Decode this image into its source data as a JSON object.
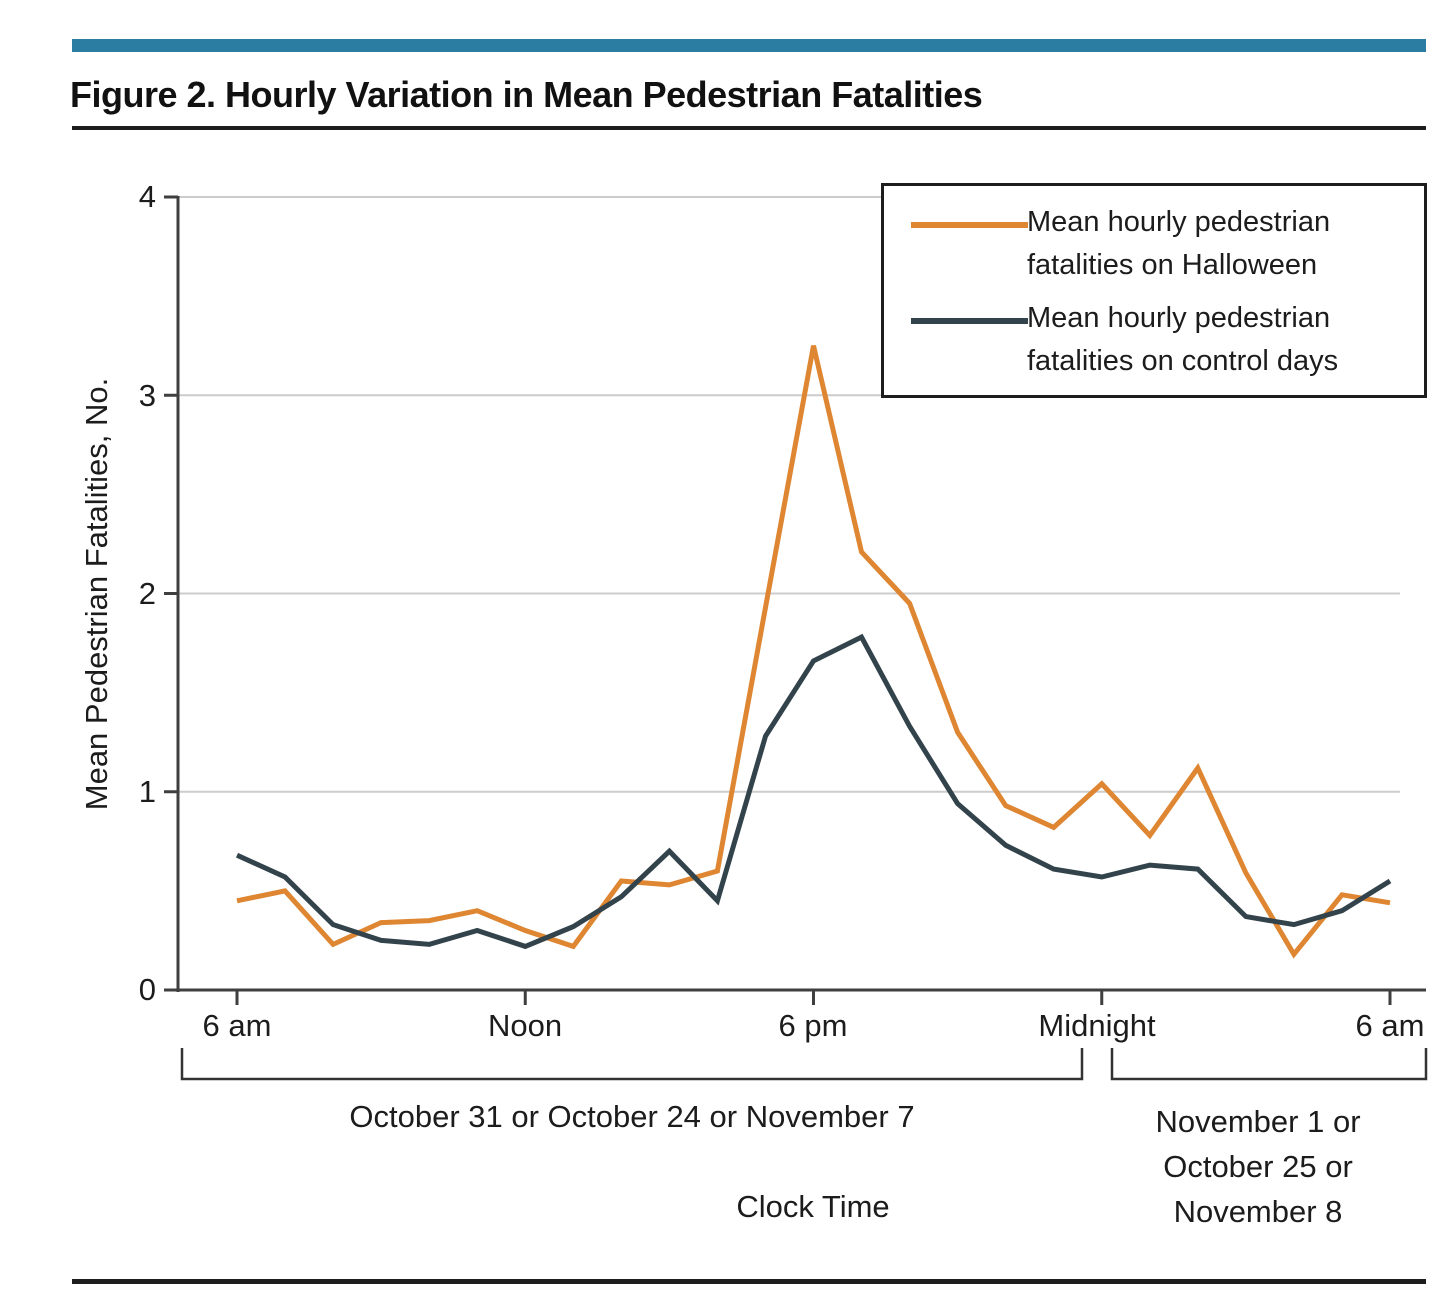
{
  "figure": {
    "title": "Figure 2. Hourly Variation in Mean Pedestrian Fatalities",
    "accent_color": "#2B7EA1"
  },
  "chart_data": {
    "type": "line",
    "ylabel": "Mean Pedestrian Fatalities, No.",
    "xlabel": "Clock Time",
    "ylim": [
      0,
      4
    ],
    "yticks": [
      0,
      1,
      2,
      3,
      4
    ],
    "ytick_labels": [
      "4",
      "3",
      "2",
      "1",
      "0"
    ],
    "xtick_labels": [
      "6 am",
      "Noon",
      "6 pm",
      "Midnight",
      "6 am"
    ],
    "xtick_hours": [
      0,
      6,
      12,
      18,
      24
    ],
    "grid": "horizontal",
    "grid_color": "#CCCCCC",
    "axis_color": "#3F3F3F",
    "legend_position": "top-right",
    "x_hours_after_6am": [
      0,
      1,
      2,
      3,
      4,
      5,
      6,
      7,
      8,
      9,
      10,
      11,
      12,
      13,
      14,
      15,
      16,
      17,
      18,
      19,
      20,
      21,
      22,
      23,
      24
    ],
    "series": [
      {
        "id": "halloween",
        "name": "Mean hourly pedestrian fatalities on Halloween",
        "color": "#DE8632",
        "values": [
          0.45,
          0.5,
          0.23,
          0.34,
          0.35,
          0.4,
          0.3,
          0.22,
          0.55,
          0.53,
          0.6,
          1.93,
          3.25,
          2.21,
          1.95,
          1.3,
          0.93,
          0.82,
          1.04,
          0.78,
          1.12,
          0.59,
          0.18,
          0.48,
          0.44
        ]
      },
      {
        "id": "control",
        "name": "Mean hourly pedestrian fatalities on control days",
        "color": "#33434C",
        "values": [
          0.68,
          0.57,
          0.33,
          0.25,
          0.23,
          0.3,
          0.22,
          0.32,
          0.47,
          0.7,
          0.45,
          1.28,
          1.66,
          1.78,
          1.33,
          0.94,
          0.73,
          0.61,
          0.57,
          0.63,
          0.61,
          0.37,
          0.33,
          0.4,
          0.55
        ]
      }
    ]
  },
  "legend": {
    "items": [
      {
        "series": "halloween",
        "lines": [
          "Mean hourly pedestrian",
          "fatalities on Halloween"
        ]
      },
      {
        "series": "control",
        "lines": [
          "Mean hourly pedestrian",
          "fatalities on control days"
        ]
      }
    ]
  },
  "footer": {
    "bracket1_label": "October 31 or October 24 or November 7",
    "bracket2_lines": [
      "November 1 or",
      "October 25 or",
      "November 8"
    ]
  }
}
